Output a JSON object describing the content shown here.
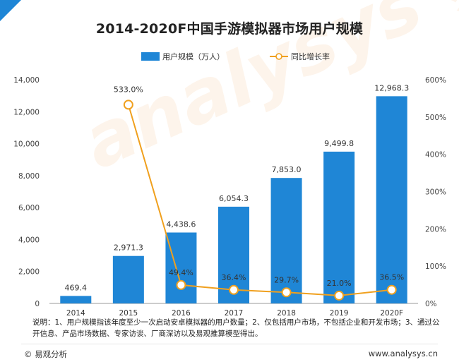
{
  "title": "2014-2020F中国手游模拟器市场用户规模",
  "watermark_text": "analysys 易观分析",
  "legend": {
    "bar_label": "用户规模（万人）",
    "line_label": "同比增长率"
  },
  "note": "说明：1、用户规模指该年度至少一次启动安卓模拟器的用户数量；2、仅包括用户市场，不包括企业和开发市场；3、通过公开信息、产品市场数据、专家访谈、厂商深访以及易观推算模型得出。",
  "footer": {
    "source": "© 易观分析",
    "url": "www.analysys.cn"
  },
  "colors": {
    "bar": "#1f86d6",
    "line": "#f0a01e",
    "corner": "#1f86d6"
  },
  "chart_data": {
    "type": "bar",
    "categories": [
      "2014",
      "2015",
      "2016",
      "2017",
      "2018",
      "2019",
      "2020F"
    ],
    "series": [
      {
        "name": "用户规模（万人）",
        "type": "bar",
        "axis": "left",
        "values": [
          469.4,
          2971.3,
          4438.6,
          6054.3,
          7853.0,
          9499.8,
          12968.3
        ],
        "labels": [
          "469.4",
          "2,971.3",
          "4,438.6",
          "6,054.3",
          "7,853.0",
          "9,499.8",
          "12,968.3"
        ]
      },
      {
        "name": "同比增长率",
        "type": "line",
        "axis": "right",
        "values": [
          null,
          533.0,
          49.4,
          36.4,
          29.7,
          21.0,
          36.5
        ],
        "labels": [
          "",
          "533.0%",
          "49.4%",
          "36.4%",
          "29.7%",
          "21.0%",
          "36.5%"
        ]
      }
    ],
    "left_axis": {
      "ylim": [
        0,
        14000
      ],
      "ticks": [
        "0",
        "2,000",
        "4,000",
        "6,000",
        "8,000",
        "10,000",
        "12,000",
        "14,000"
      ]
    },
    "right_axis": {
      "ylim": [
        0,
        600
      ],
      "ticks": [
        "0%",
        "100%",
        "200%",
        "300%",
        "400%",
        "500%",
        "600%"
      ]
    },
    "grid": false,
    "legend_position": "top"
  }
}
